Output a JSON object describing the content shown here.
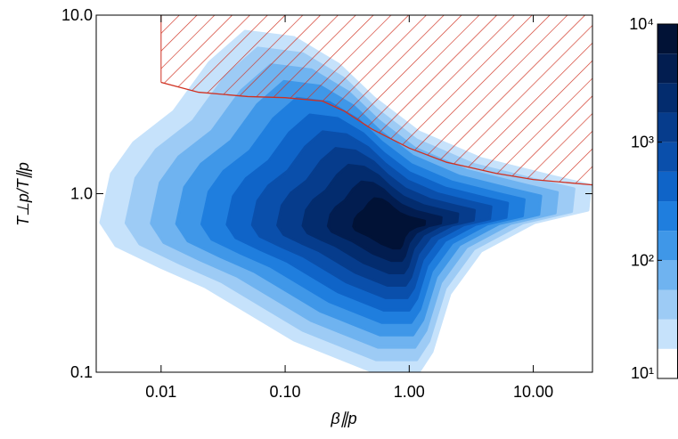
{
  "chart_data": {
    "type": "contour",
    "xlabel": "β∥p",
    "ylabel": "T⊥p/T∥p",
    "xscale": "log",
    "yscale": "log",
    "xlim": [
      0.003,
      30
    ],
    "ylim": [
      0.1,
      10
    ],
    "xticks": [
      0.01,
      {
        "value": 0.1,
        "label": "0.10"
      },
      {
        "value": 1,
        "label": "1.00"
      },
      {
        "value": 10,
        "label": "10.00"
      }
    ],
    "yticks": [
      0.1,
      {
        "value": 1,
        "label": "1.0"
      },
      {
        "value": 10,
        "label": "10.0"
      }
    ],
    "colorbar": {
      "scale": "log",
      "lim": [
        10,
        10000
      ],
      "ticks": [
        {
          "value": 10,
          "label": "10¹"
        },
        {
          "value": 100,
          "label": "10²"
        },
        {
          "value": 1000,
          "label": "10³"
        },
        {
          "value": 10000,
          "label": "10⁴"
        }
      ],
      "levels": [
        10,
        17.8,
        31.6,
        56.2,
        100,
        178,
        316,
        562,
        1000,
        1780,
        3160,
        5620,
        10000
      ],
      "colors": [
        "#ffffff",
        "#c6e2fb",
        "#9dcbf5",
        "#6fb3f0",
        "#3f97e8",
        "#1f7ede",
        "#0f64c8",
        "#0a4fab",
        "#063c8c",
        "#032c6e",
        "#021d50",
        "#011236"
      ]
    },
    "threshold": {
      "color": "#d03020",
      "x": [
        0.01,
        0.02,
        0.05,
        0.1,
        0.2,
        0.3,
        0.5,
        1,
        2,
        5,
        10,
        30
      ],
      "y": [
        4.2,
        3.7,
        3.5,
        3.45,
        3.3,
        2.9,
        2.3,
        1.8,
        1.5,
        1.3,
        1.2,
        1.12
      ]
    }
  }
}
